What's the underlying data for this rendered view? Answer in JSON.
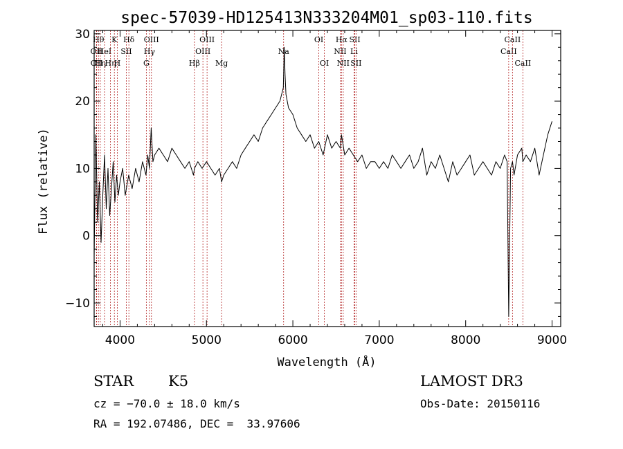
{
  "chart_data": {
    "type": "line",
    "title": "spec-57039-HD125413N333204M01_sp03-110.fits",
    "xlabel": "Wavelength (Å)",
    "ylabel": "Flux (relative)",
    "xlim": [
      3700,
      9100
    ],
    "ylim": [
      -13.5,
      30.5
    ],
    "xticks": [
      4000,
      5000,
      6000,
      7000,
      8000,
      9000
    ],
    "yticks": [
      -10,
      0,
      10,
      20,
      30
    ],
    "grid": false,
    "series": [
      {
        "x": [
          3700,
          3720,
          3740,
          3760,
          3780,
          3800,
          3820,
          3840,
          3860,
          3880,
          3900,
          3920,
          3940,
          3960,
          3980,
          4000,
          4030,
          4060,
          4100,
          4140,
          4180,
          4220,
          4260,
          4300,
          4320,
          4340,
          4360,
          4380,
          4400,
          4450,
          4500,
          4550,
          4600,
          4650,
          4700,
          4750,
          4800,
          4850,
          4861,
          4900,
          4950,
          5000,
          5050,
          5100,
          5150,
          5175,
          5200,
          5250,
          5300,
          5350,
          5400,
          5450,
          5500,
          5550,
          5600,
          5650,
          5700,
          5750,
          5800,
          5850,
          5890,
          5900,
          5910,
          5920,
          5950,
          6000,
          6050,
          6100,
          6150,
          6200,
          6250,
          6300,
          6350,
          6400,
          6450,
          6500,
          6550,
          6563,
          6600,
          6650,
          6700,
          6750,
          6800,
          6850,
          6900,
          6950,
          7000,
          7050,
          7100,
          7150,
          7200,
          7250,
          7300,
          7350,
          7400,
          7450,
          7500,
          7550,
          7600,
          7650,
          7700,
          7750,
          7800,
          7850,
          7900,
          7950,
          8000,
          8050,
          8100,
          8150,
          8200,
          8250,
          8300,
          8350,
          8400,
          8450,
          8480,
          8498,
          8520,
          8542,
          8560,
          8600,
          8650,
          8662,
          8700,
          8750,
          8800,
          8850,
          8900,
          8950,
          9000
        ],
        "y": [
          -3,
          15,
          2,
          8,
          -1,
          6,
          12,
          4,
          10,
          3,
          7,
          11,
          5,
          9,
          6,
          8,
          10,
          6,
          9,
          7,
          10,
          8,
          11,
          9,
          12,
          10,
          16,
          11,
          12,
          13,
          12,
          11,
          13,
          12,
          11,
          10,
          11,
          9,
          10,
          11,
          10,
          11,
          10,
          9,
          10,
          8,
          9,
          10,
          11,
          10,
          12,
          13,
          14,
          15,
          14,
          16,
          17,
          18,
          19,
          20,
          22,
          28,
          24,
          21,
          19,
          18,
          16,
          15,
          14,
          15,
          13,
          14,
          12,
          15,
          13,
          14,
          13,
          15,
          12,
          13,
          12,
          11,
          12,
          10,
          11,
          11,
          10,
          11,
          10,
          12,
          11,
          10,
          11,
          12,
          10,
          11,
          13,
          9,
          11,
          10,
          12,
          10,
          8,
          11,
          9,
          10,
          11,
          12,
          9,
          10,
          11,
          10,
          9,
          11,
          10,
          12,
          11,
          -12,
          10,
          11,
          9,
          12,
          13,
          11,
          12,
          11,
          13,
          9,
          12,
          15,
          17
        ]
      }
    ],
    "lines": [
      {
        "wavelength": 3727,
        "label": "OII",
        "row": 2
      },
      {
        "wavelength": 3729,
        "label": "OII",
        "row": 3
      },
      {
        "wavelength": 3750,
        "label": "Hθ",
        "row": 1
      },
      {
        "wavelength": 3771,
        "label": "Hη",
        "row": 3
      },
      {
        "wavelength": 3820,
        "label": "HeI",
        "row": 2
      },
      {
        "wavelength": 3889,
        "label": "Hη",
        "row": 3
      },
      {
        "wavelength": 3934,
        "label": "K",
        "row": 1
      },
      {
        "wavelength": 3968,
        "label": "H",
        "row": 3
      },
      {
        "wavelength": 4072,
        "label": "SII",
        "row": 2
      },
      {
        "wavelength": 4102,
        "label": "Hδ",
        "row": 1
      },
      {
        "wavelength": 4304,
        "label": "G",
        "row": 3
      },
      {
        "wavelength": 4340,
        "label": "Hγ",
        "row": 2
      },
      {
        "wavelength": 4363,
        "label": "OIII",
        "row": 1
      },
      {
        "wavelength": 4861,
        "label": "Hβ",
        "row": 3
      },
      {
        "wavelength": 4959,
        "label": "OIII",
        "row": 2
      },
      {
        "wavelength": 5007,
        "label": "OIII",
        "row": 1
      },
      {
        "wavelength": 5175,
        "label": "Mg",
        "row": 3
      },
      {
        "wavelength": 5893,
        "label": "Na",
        "row": 2
      },
      {
        "wavelength": 6300,
        "label": "OI",
        "row": 1
      },
      {
        "wavelength": 6364,
        "label": "OI",
        "row": 3
      },
      {
        "wavelength": 6548,
        "label": "NII",
        "row": 2
      },
      {
        "wavelength": 6563,
        "label": "Hα",
        "row": 1
      },
      {
        "wavelength": 6583,
        "label": "NII",
        "row": 3
      },
      {
        "wavelength": 6708,
        "label": "Li",
        "row": 2
      },
      {
        "wavelength": 6717,
        "label": "SII",
        "row": 1
      },
      {
        "wavelength": 6731,
        "label": "SII",
        "row": 3
      },
      {
        "wavelength": 8498,
        "label": "CaII",
        "row": 2
      },
      {
        "wavelength": 8542,
        "label": "CaII",
        "row": 1
      },
      {
        "wavelength": 8662,
        "label": "CaII",
        "row": 3
      }
    ]
  },
  "info": {
    "object_class": "STAR",
    "subclass": "K5",
    "survey": "LAMOST DR3",
    "redshift": "cz = −70.0 ± 18.0 km/s",
    "obs_date": "Obs-Date: 20150116",
    "coords": "RA = 192.07486, DEC =  33.97606"
  },
  "colors": {
    "spectrum": "#000000",
    "line_markers": "#b22222",
    "axes": "#000000"
  }
}
